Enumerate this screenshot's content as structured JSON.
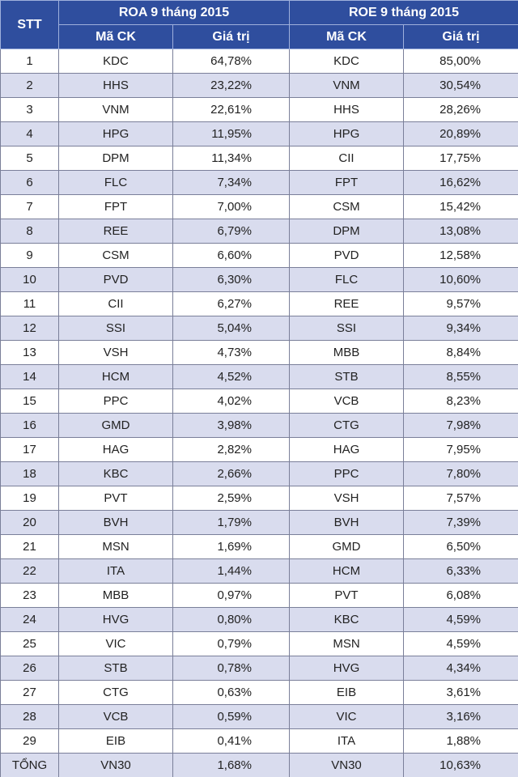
{
  "table": {
    "header": {
      "stt": "STT",
      "roa": "ROA 9 tháng 2015",
      "roe": "ROE 9 tháng 2015",
      "code1": "Mã CK",
      "value1": "Giá trị",
      "code2": "Mã CK",
      "value2": "Giá trị"
    },
    "rows": [
      [
        "1",
        "KDC",
        "64,78%",
        "KDC",
        "85,00%"
      ],
      [
        "2",
        "HHS",
        "23,22%",
        "VNM",
        "30,54%"
      ],
      [
        "3",
        "VNM",
        "22,61%",
        "HHS",
        "28,26%"
      ],
      [
        "4",
        "HPG",
        "11,95%",
        "HPG",
        "20,89%"
      ],
      [
        "5",
        "DPM",
        "11,34%",
        "CII",
        "17,75%"
      ],
      [
        "6",
        "FLC",
        "7,34%",
        "FPT",
        "16,62%"
      ],
      [
        "7",
        "FPT",
        "7,00%",
        "CSM",
        "15,42%"
      ],
      [
        "8",
        "REE",
        "6,79%",
        "DPM",
        "13,08%"
      ],
      [
        "9",
        "CSM",
        "6,60%",
        "PVD",
        "12,58%"
      ],
      [
        "10",
        "PVD",
        "6,30%",
        "FLC",
        "10,60%"
      ],
      [
        "11",
        "CII",
        "6,27%",
        "REE",
        "9,57%"
      ],
      [
        "12",
        "SSI",
        "5,04%",
        "SSI",
        "9,34%"
      ],
      [
        "13",
        "VSH",
        "4,73%",
        "MBB",
        "8,84%"
      ],
      [
        "14",
        "HCM",
        "4,52%",
        "STB",
        "8,55%"
      ],
      [
        "15",
        "PPC",
        "4,02%",
        "VCB",
        "8,23%"
      ],
      [
        "16",
        "GMD",
        "3,98%",
        "CTG",
        "7,98%"
      ],
      [
        "17",
        "HAG",
        "2,82%",
        "HAG",
        "7,95%"
      ],
      [
        "18",
        "KBC",
        "2,66%",
        "PPC",
        "7,80%"
      ],
      [
        "19",
        "PVT",
        "2,59%",
        "VSH",
        "7,57%"
      ],
      [
        "20",
        "BVH",
        "1,79%",
        "BVH",
        "7,39%"
      ],
      [
        "21",
        "MSN",
        "1,69%",
        "GMD",
        "6,50%"
      ],
      [
        "22",
        "ITA",
        "1,44%",
        "HCM",
        "6,33%"
      ],
      [
        "23",
        "MBB",
        "0,97%",
        "PVT",
        "6,08%"
      ],
      [
        "24",
        "HVG",
        "0,80%",
        "KBC",
        "4,59%"
      ],
      [
        "25",
        "VIC",
        "0,79%",
        "MSN",
        "4,59%"
      ],
      [
        "26",
        "STB",
        "0,78%",
        "HVG",
        "4,34%"
      ],
      [
        "27",
        "CTG",
        "0,63%",
        "EIB",
        "3,61%"
      ],
      [
        "28",
        "VCB",
        "0,59%",
        "VIC",
        "3,16%"
      ],
      [
        "29",
        "EIB",
        "0,41%",
        "ITA",
        "1,88%"
      ],
      [
        "TỔNG",
        "VN30",
        "1,68%",
        "VN30",
        "10,63%"
      ]
    ]
  }
}
